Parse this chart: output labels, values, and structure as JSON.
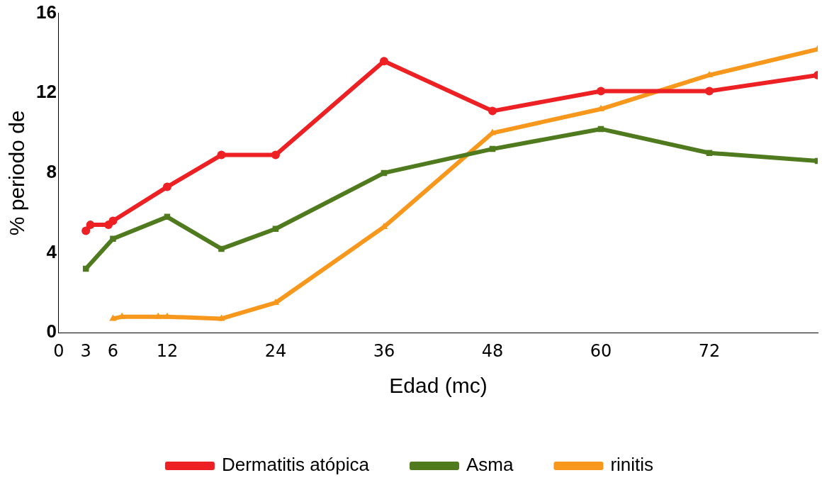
{
  "chart_data": {
    "type": "line",
    "xlabel": "Edad (mc)",
    "ylabel": "% periodo de",
    "xlim": [
      0,
      84
    ],
    "xticks": [
      0,
      3,
      6,
      12,
      24,
      36,
      48,
      60,
      72
    ],
    "ylim": [
      0,
      16
    ],
    "yticks": [
      0,
      4,
      8,
      12,
      16
    ],
    "grid": false,
    "legend": "bottom",
    "line_style": "solid",
    "series": [
      {
        "name": "Dermatitis atópica",
        "color": "#ed2024",
        "marker": "circle",
        "x": [
          3,
          3.5,
          5.5,
          6,
          12,
          18,
          24,
          36,
          48,
          60,
          72,
          84
        ],
        "values": [
          5.1,
          5.4,
          5.4,
          5.6,
          7.3,
          8.9,
          8.9,
          13.6,
          11.1,
          12.1,
          12.1,
          12.9
        ]
      },
      {
        "name": "Asma",
        "color": "#4f7a1e",
        "marker": "square",
        "x": [
          3,
          6,
          12,
          18,
          24,
          36,
          48,
          60,
          72,
          84
        ],
        "values": [
          3.2,
          4.7,
          5.8,
          4.2,
          5.2,
          8,
          9.2,
          10.2,
          9,
          8.6
        ]
      },
      {
        "name": "rinitis",
        "color": "#f7981d",
        "marker": "triangle",
        "x": [
          6,
          7,
          11,
          12,
          18,
          24,
          36,
          48,
          60,
          72,
          84
        ],
        "values": [
          0.7,
          0.8,
          0.8,
          0.8,
          0.7,
          1.5,
          5.3,
          10,
          11.2,
          12.9,
          14.2
        ]
      }
    ]
  }
}
